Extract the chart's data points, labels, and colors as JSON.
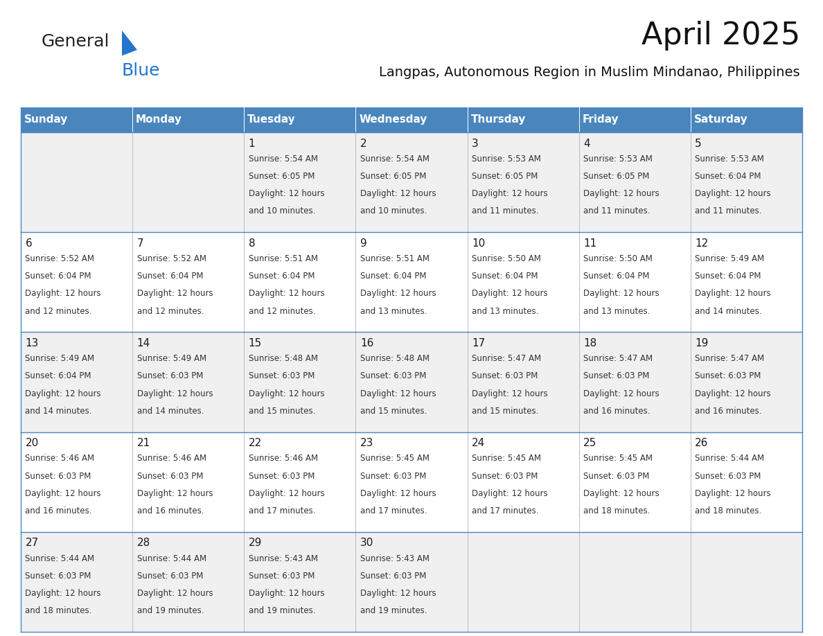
{
  "title": "April 2025",
  "subtitle": "Langpas, Autonomous Region in Muslim Mindanao, Philippines",
  "header_color": "#4a86be",
  "header_text_color": "#ffffff",
  "row_bg_odd": "#f0f0f0",
  "row_bg_even": "#ffffff",
  "border_color": "#4a86be",
  "text_color": "#333333",
  "day_number_color": "#1a1a1a",
  "days_of_week": [
    "Sunday",
    "Monday",
    "Tuesday",
    "Wednesday",
    "Thursday",
    "Friday",
    "Saturday"
  ],
  "calendar": [
    [
      {
        "day": "",
        "sunrise": "",
        "sunset": "",
        "daylight": ""
      },
      {
        "day": "",
        "sunrise": "",
        "sunset": "",
        "daylight": ""
      },
      {
        "day": "1",
        "sunrise": "5:54 AM",
        "sunset": "6:05 PM",
        "daylight": "12 hours and 10 minutes."
      },
      {
        "day": "2",
        "sunrise": "5:54 AM",
        "sunset": "6:05 PM",
        "daylight": "12 hours and 10 minutes."
      },
      {
        "day": "3",
        "sunrise": "5:53 AM",
        "sunset": "6:05 PM",
        "daylight": "12 hours and 11 minutes."
      },
      {
        "day": "4",
        "sunrise": "5:53 AM",
        "sunset": "6:05 PM",
        "daylight": "12 hours and 11 minutes."
      },
      {
        "day": "5",
        "sunrise": "5:53 AM",
        "sunset": "6:04 PM",
        "daylight": "12 hours and 11 minutes."
      }
    ],
    [
      {
        "day": "6",
        "sunrise": "5:52 AM",
        "sunset": "6:04 PM",
        "daylight": "12 hours and 12 minutes."
      },
      {
        "day": "7",
        "sunrise": "5:52 AM",
        "sunset": "6:04 PM",
        "daylight": "12 hours and 12 minutes."
      },
      {
        "day": "8",
        "sunrise": "5:51 AM",
        "sunset": "6:04 PM",
        "daylight": "12 hours and 12 minutes."
      },
      {
        "day": "9",
        "sunrise": "5:51 AM",
        "sunset": "6:04 PM",
        "daylight": "12 hours and 13 minutes."
      },
      {
        "day": "10",
        "sunrise": "5:50 AM",
        "sunset": "6:04 PM",
        "daylight": "12 hours and 13 minutes."
      },
      {
        "day": "11",
        "sunrise": "5:50 AM",
        "sunset": "6:04 PM",
        "daylight": "12 hours and 13 minutes."
      },
      {
        "day": "12",
        "sunrise": "5:49 AM",
        "sunset": "6:04 PM",
        "daylight": "12 hours and 14 minutes."
      }
    ],
    [
      {
        "day": "13",
        "sunrise": "5:49 AM",
        "sunset": "6:04 PM",
        "daylight": "12 hours and 14 minutes."
      },
      {
        "day": "14",
        "sunrise": "5:49 AM",
        "sunset": "6:03 PM",
        "daylight": "12 hours and 14 minutes."
      },
      {
        "day": "15",
        "sunrise": "5:48 AM",
        "sunset": "6:03 PM",
        "daylight": "12 hours and 15 minutes."
      },
      {
        "day": "16",
        "sunrise": "5:48 AM",
        "sunset": "6:03 PM",
        "daylight": "12 hours and 15 minutes."
      },
      {
        "day": "17",
        "sunrise": "5:47 AM",
        "sunset": "6:03 PM",
        "daylight": "12 hours and 15 minutes."
      },
      {
        "day": "18",
        "sunrise": "5:47 AM",
        "sunset": "6:03 PM",
        "daylight": "12 hours and 16 minutes."
      },
      {
        "day": "19",
        "sunrise": "5:47 AM",
        "sunset": "6:03 PM",
        "daylight": "12 hours and 16 minutes."
      }
    ],
    [
      {
        "day": "20",
        "sunrise": "5:46 AM",
        "sunset": "6:03 PM",
        "daylight": "12 hours and 16 minutes."
      },
      {
        "day": "21",
        "sunrise": "5:46 AM",
        "sunset": "6:03 PM",
        "daylight": "12 hours and 16 minutes."
      },
      {
        "day": "22",
        "sunrise": "5:46 AM",
        "sunset": "6:03 PM",
        "daylight": "12 hours and 17 minutes."
      },
      {
        "day": "23",
        "sunrise": "5:45 AM",
        "sunset": "6:03 PM",
        "daylight": "12 hours and 17 minutes."
      },
      {
        "day": "24",
        "sunrise": "5:45 AM",
        "sunset": "6:03 PM",
        "daylight": "12 hours and 17 minutes."
      },
      {
        "day": "25",
        "sunrise": "5:45 AM",
        "sunset": "6:03 PM",
        "daylight": "12 hours and 18 minutes."
      },
      {
        "day": "26",
        "sunrise": "5:44 AM",
        "sunset": "6:03 PM",
        "daylight": "12 hours and 18 minutes."
      }
    ],
    [
      {
        "day": "27",
        "sunrise": "5:44 AM",
        "sunset": "6:03 PM",
        "daylight": "12 hours and 18 minutes."
      },
      {
        "day": "28",
        "sunrise": "5:44 AM",
        "sunset": "6:03 PM",
        "daylight": "12 hours and 19 minutes."
      },
      {
        "day": "29",
        "sunrise": "5:43 AM",
        "sunset": "6:03 PM",
        "daylight": "12 hours and 19 minutes."
      },
      {
        "day": "30",
        "sunrise": "5:43 AM",
        "sunset": "6:03 PM",
        "daylight": "12 hours and 19 minutes."
      },
      {
        "day": "",
        "sunrise": "",
        "sunset": "",
        "daylight": ""
      },
      {
        "day": "",
        "sunrise": "",
        "sunset": "",
        "daylight": ""
      },
      {
        "day": "",
        "sunrise": "",
        "sunset": "",
        "daylight": ""
      }
    ]
  ],
  "logo_general_color": "#222222",
  "logo_blue_color": "#2277cc",
  "logo_triangle_color": "#2277cc",
  "title_fontsize": 32,
  "subtitle_fontsize": 14,
  "header_fontsize": 11,
  "day_num_fontsize": 11,
  "cell_text_fontsize": 8.5
}
